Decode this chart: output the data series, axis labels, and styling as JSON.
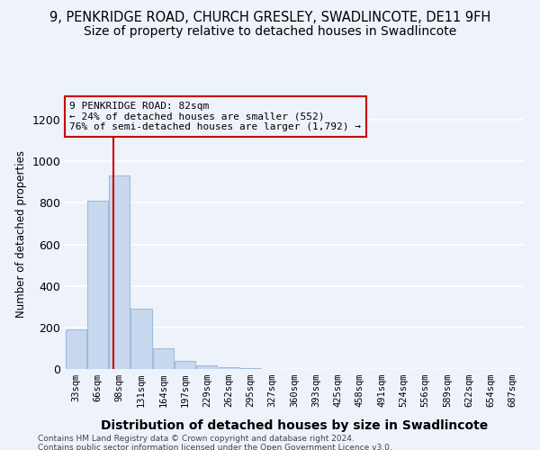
{
  "title1": "9, PENKRIDGE ROAD, CHURCH GRESLEY, SWADLINCOTE, DE11 9FH",
  "title2": "Size of property relative to detached houses in Swadlincote",
  "xlabel": "Distribution of detached houses by size in Swadlincote",
  "ylabel": "Number of detached properties",
  "bins": [
    "33sqm",
    "66sqm",
    "98sqm",
    "131sqm",
    "164sqm",
    "197sqm",
    "229sqm",
    "262sqm",
    "295sqm",
    "327sqm",
    "360sqm",
    "393sqm",
    "425sqm",
    "458sqm",
    "491sqm",
    "524sqm",
    "556sqm",
    "589sqm",
    "622sqm",
    "654sqm",
    "687sqm"
  ],
  "values": [
    190,
    810,
    930,
    290,
    100,
    40,
    18,
    7,
    5,
    0,
    0,
    0,
    0,
    0,
    0,
    0,
    0,
    0,
    0,
    0,
    0
  ],
  "bar_color": "#c8d9ef",
  "bar_edge_color": "#a0bcd8",
  "vline_x": 1.73,
  "vline_color": "#cc0000",
  "annotation_text": "9 PENKRIDGE ROAD: 82sqm\n← 24% of detached houses are smaller (552)\n76% of semi-detached houses are larger (1,792) →",
  "annotation_box_color": "#cc0000",
  "ylim": [
    0,
    1300
  ],
  "yticks": [
    0,
    200,
    400,
    600,
    800,
    1000,
    1200
  ],
  "footer1": "Contains HM Land Registry data © Crown copyright and database right 2024.",
  "footer2": "Contains public sector information licensed under the Open Government Licence v3.0.",
  "bg_color": "#eef2fb",
  "grid_color": "#ffffff",
  "title1_fontsize": 10.5,
  "title2_fontsize": 10
}
